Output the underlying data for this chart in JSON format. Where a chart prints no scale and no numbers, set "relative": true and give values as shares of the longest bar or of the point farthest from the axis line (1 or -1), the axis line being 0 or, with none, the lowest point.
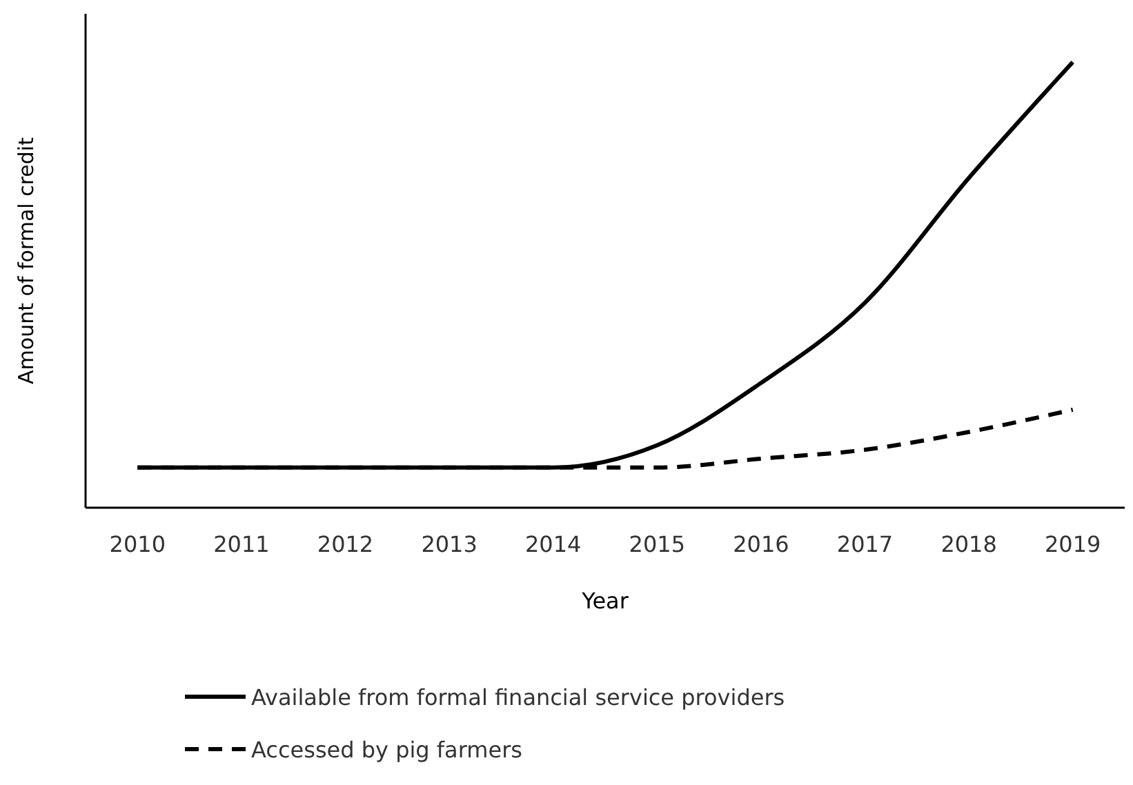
{
  "chart_data": {
    "type": "line",
    "relative": true,
    "xlabel": "Year",
    "ylabel": "Amount of formal credit",
    "categories": [
      "2010",
      "2011",
      "2012",
      "2013",
      "2014",
      "2015",
      "2016",
      "2017",
      "2018",
      "2019"
    ],
    "legend": "bottom",
    "marker": "none",
    "series": [
      {
        "name": "Available from formal financial service providers",
        "color": "#000000",
        "line_style": "solid",
        "values": [
          0.09,
          0.09,
          0.09,
          0.09,
          0.09,
          0.14,
          0.28,
          0.46,
          0.74,
          1
        ]
      },
      {
        "name": "Accessed by pig farmers",
        "color": "#000000",
        "line_style": "dashed",
        "values": [
          0.09,
          0.09,
          0.09,
          0.09,
          0.09,
          0.09,
          0.11,
          0.13,
          0.17,
          0.22
        ]
      }
    ]
  }
}
